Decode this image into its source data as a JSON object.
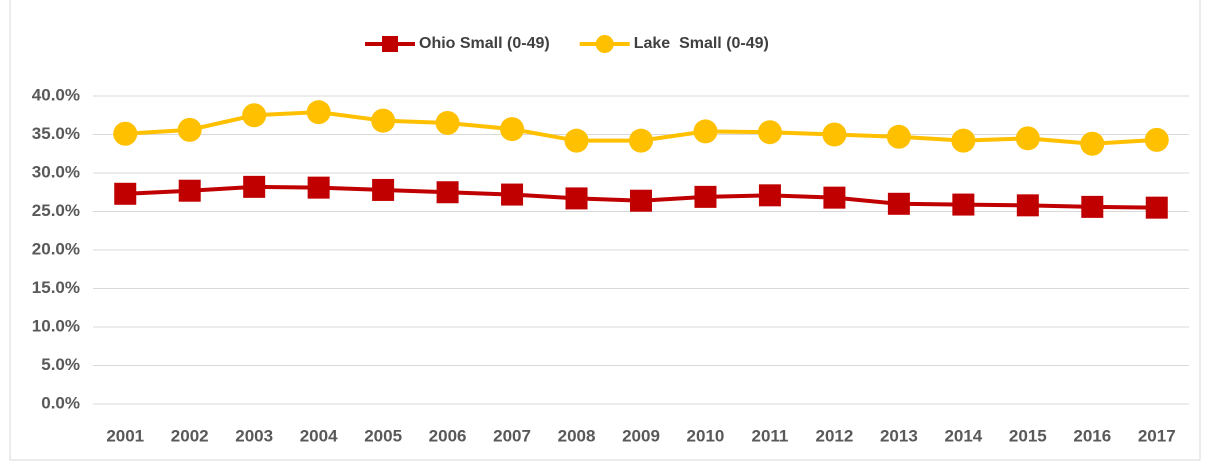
{
  "chart_data": {
    "type": "line",
    "categories": [
      "2001",
      "2002",
      "2003",
      "2004",
      "2005",
      "2006",
      "2007",
      "2008",
      "2009",
      "2010",
      "2011",
      "2012",
      "2013",
      "2014",
      "2015",
      "2016",
      "2017"
    ],
    "series": [
      {
        "name": "Ohio Small (0-49)",
        "color": "#c00000",
        "marker": "square",
        "values": [
          27.3,
          27.7,
          28.2,
          28.1,
          27.8,
          27.5,
          27.2,
          26.7,
          26.4,
          26.9,
          27.1,
          26.8,
          26.0,
          25.9,
          25.8,
          25.6,
          25.5
        ]
      },
      {
        "name": "Lake  Small (0-49)",
        "color": "#ffc000",
        "marker": "circle",
        "values": [
          35.1,
          35.6,
          37.5,
          37.9,
          36.8,
          36.5,
          35.7,
          34.2,
          34.2,
          35.4,
          35.3,
          35.0,
          34.7,
          34.2,
          34.5,
          33.8,
          34.3
        ]
      }
    ],
    "ylim": [
      0,
      40
    ],
    "yticks": [
      {
        "value": 0,
        "label": "0.0%"
      },
      {
        "value": 5,
        "label": "5.0%"
      },
      {
        "value": 10,
        "label": "10.0%"
      },
      {
        "value": 15,
        "label": "15.0%"
      },
      {
        "value": 20,
        "label": "20.0%"
      },
      {
        "value": 25,
        "label": "25.0%"
      },
      {
        "value": 30,
        "label": "30.0%"
      },
      {
        "value": 35,
        "label": "35.0%"
      },
      {
        "value": 40,
        "label": "40.0%"
      }
    ],
    "grid": true,
    "legend": "top"
  }
}
